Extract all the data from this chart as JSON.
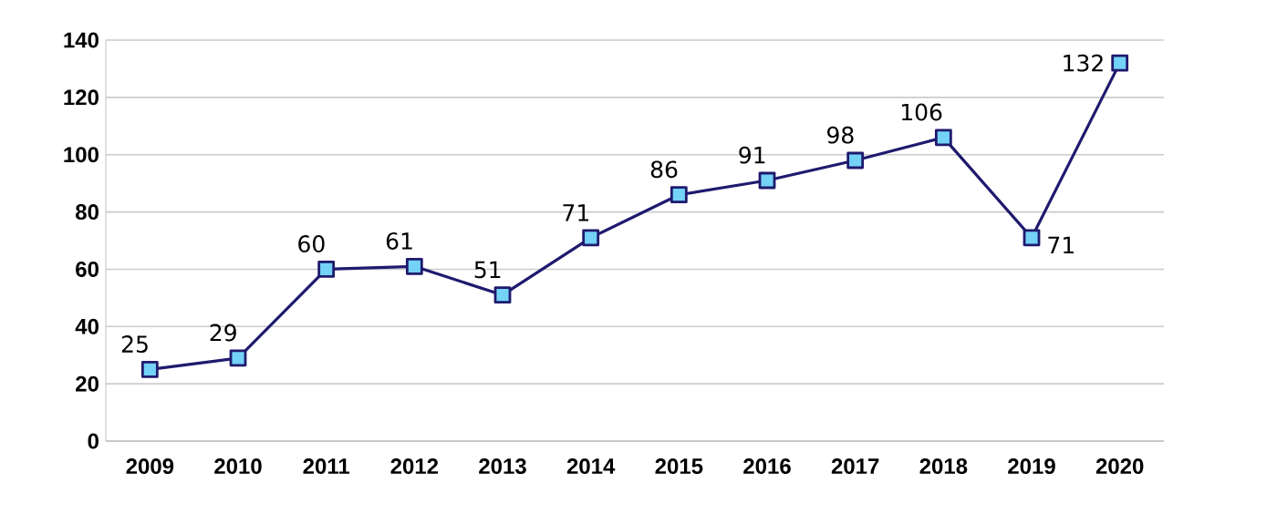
{
  "chart_data": {
    "type": "line",
    "categories": [
      "2009",
      "2010",
      "2011",
      "2012",
      "2013",
      "2014",
      "2015",
      "2016",
      "2017",
      "2018",
      "2019",
      "2020"
    ],
    "series": [
      {
        "color": "#1f1a6e",
        "values": [
          25,
          29,
          60,
          61,
          51,
          71,
          86,
          91,
          98,
          106,
          71,
          132
        ]
      }
    ],
    "ylim": [
      0,
      140
    ],
    "yticks": [
      0,
      20,
      40,
      60,
      80,
      100,
      120,
      140
    ],
    "grid": "y",
    "marker": "square",
    "line_style": "solid",
    "data_labels": true
  }
}
